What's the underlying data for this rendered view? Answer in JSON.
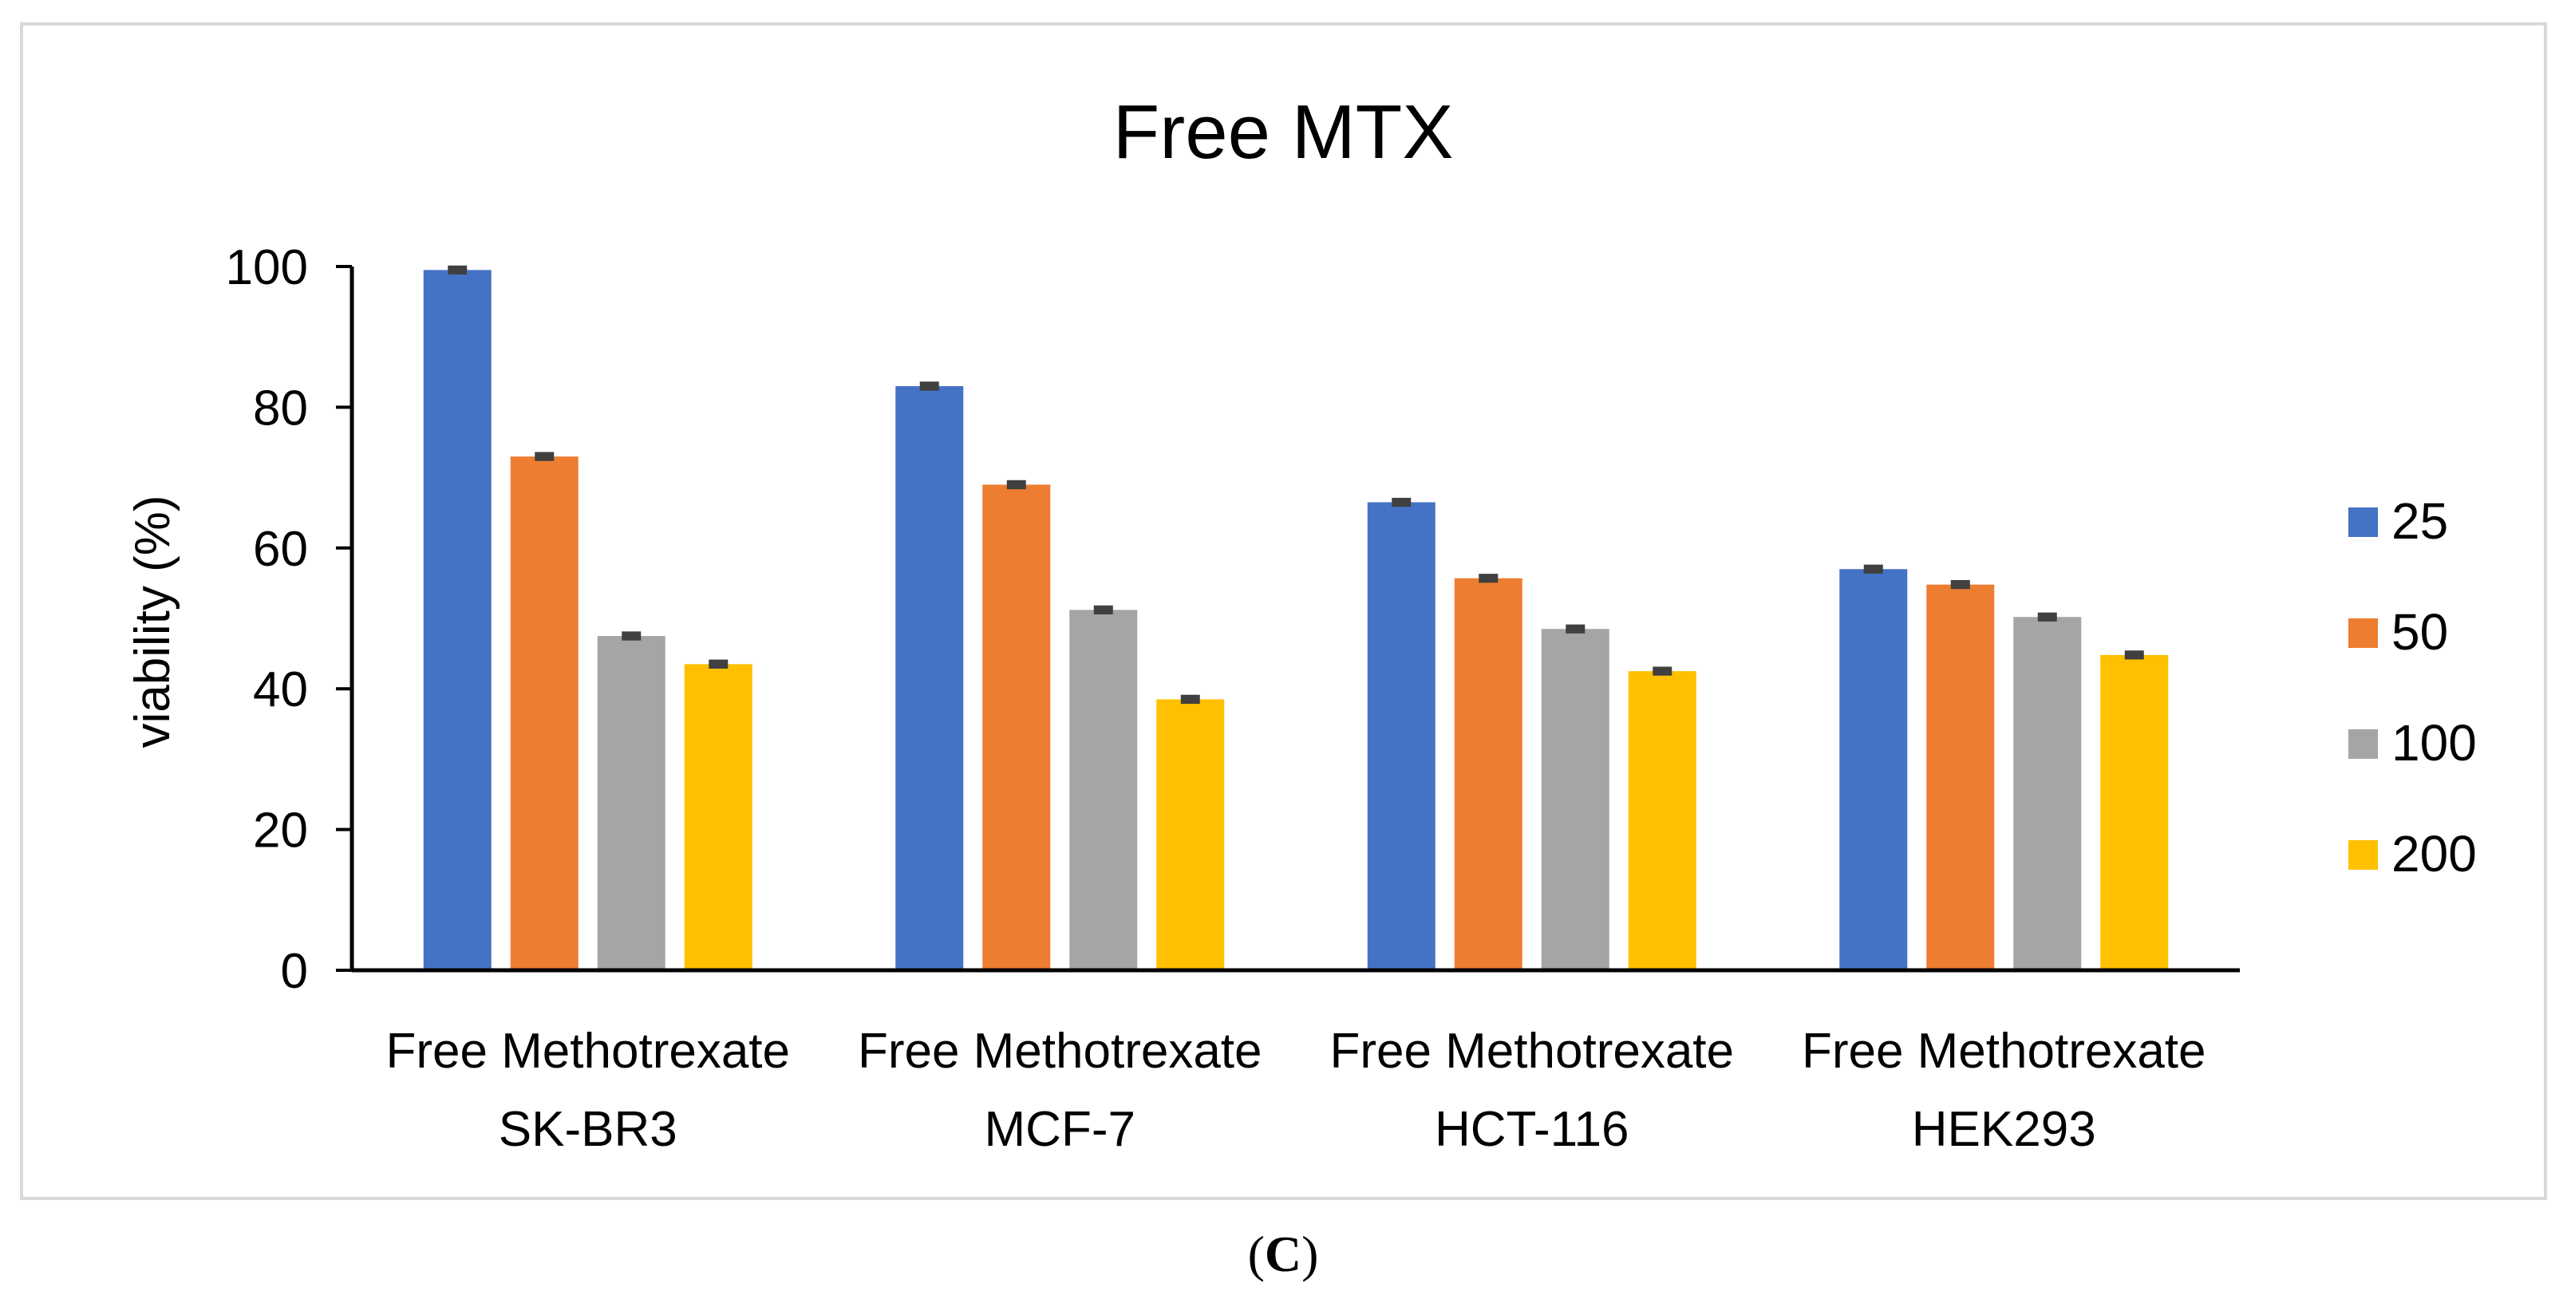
{
  "chart_data": {
    "type": "bar",
    "title": "Free MTX",
    "xlabel": "",
    "ylabel": "viability (%)",
    "ylim": [
      0,
      100
    ],
    "yticks": [
      0,
      20,
      40,
      60,
      80,
      100
    ],
    "categories": [
      [
        "Free Methotrexate",
        "SK-BR3"
      ],
      [
        "Free Methotrexate",
        "MCF-7"
      ],
      [
        "Free Methotrexate",
        "HCT-116"
      ],
      [
        "Free Methotrexate",
        "HEK293"
      ]
    ],
    "series": [
      {
        "name": "25",
        "color": "#4472C4",
        "values": [
          99.5,
          83.0,
          66.5,
          57.0
        ],
        "errors": [
          0.3,
          0.3,
          0.3,
          0.3
        ]
      },
      {
        "name": "50",
        "color": "#ED7D31",
        "values": [
          73.0,
          69.0,
          55.7,
          54.8
        ],
        "errors": [
          0.3,
          0.3,
          0.3,
          0.3
        ]
      },
      {
        "name": "100",
        "color": "#A5A5A5",
        "values": [
          47.5,
          51.2,
          48.5,
          50.2
        ],
        "errors": [
          0.3,
          0.3,
          0.3,
          0.3
        ]
      },
      {
        "name": "200",
        "color": "#FFC000",
        "values": [
          43.5,
          38.5,
          42.5,
          44.8
        ],
        "errors": [
          0.3,
          0.3,
          0.3,
          0.3
        ]
      }
    ],
    "legend_position": "right",
    "grid": false
  },
  "caption": {
    "open": "(",
    "letter": "C",
    "close": ")"
  }
}
